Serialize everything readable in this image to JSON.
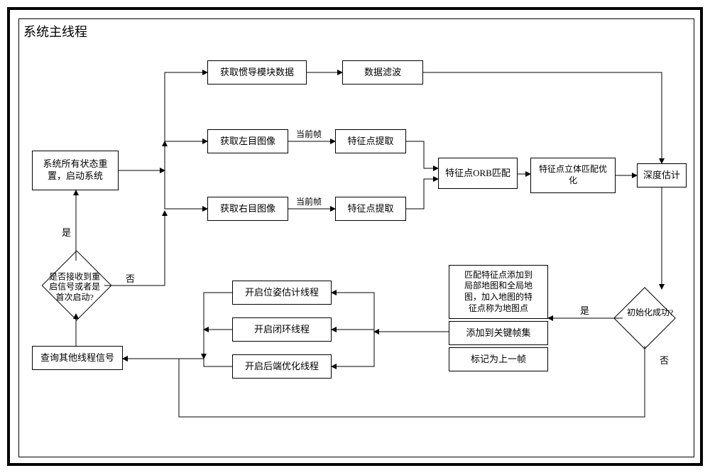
{
  "title": "系统主线程",
  "nodes": {
    "reset": {
      "text": "系统所有状态重\n置，启动系统"
    },
    "restart": {
      "text": "是否接收到重\n启信号或者是\n首次启动?"
    },
    "query": {
      "text": "查询其他线程信号"
    },
    "imu": {
      "text": "获取惯导模块数据"
    },
    "filter": {
      "text": "数据滤波"
    },
    "left": {
      "text": "获取左目图像"
    },
    "right": {
      "text": "获取右目图像"
    },
    "featL": {
      "text": "特征点提取"
    },
    "featR": {
      "text": "特征点提取"
    },
    "orb": {
      "text": "特征点ORB匹配"
    },
    "stereo": {
      "text": "特征点立体匹配优\n化"
    },
    "depth": {
      "text": "深度估计"
    },
    "initok": {
      "text": "初始化成功?"
    },
    "addmap": {
      "text": "匹配特征点添加到\n局部地图和全局地\n图，加入地图的特\n征点称为地图点"
    },
    "addkey": {
      "text": "添加到关键帧集"
    },
    "mark": {
      "text": "标记为上一帧"
    },
    "pose": {
      "text": "开启位姿估计线程"
    },
    "loop": {
      "text": "开启闭环线程"
    },
    "backend": {
      "text": "开启后端优化线程"
    }
  },
  "edge_labels": {
    "yes1": "是",
    "no1": "否",
    "cur1": "当前帧",
    "cur2": "当前帧",
    "yes2": "是",
    "no2": "否"
  },
  "style": {
    "fontsize_title": 18,
    "fontsize_node": 13,
    "fontsize_label": 12,
    "border_color": "#000000",
    "bg_color": "#ffffff",
    "line_width": 1
  }
}
